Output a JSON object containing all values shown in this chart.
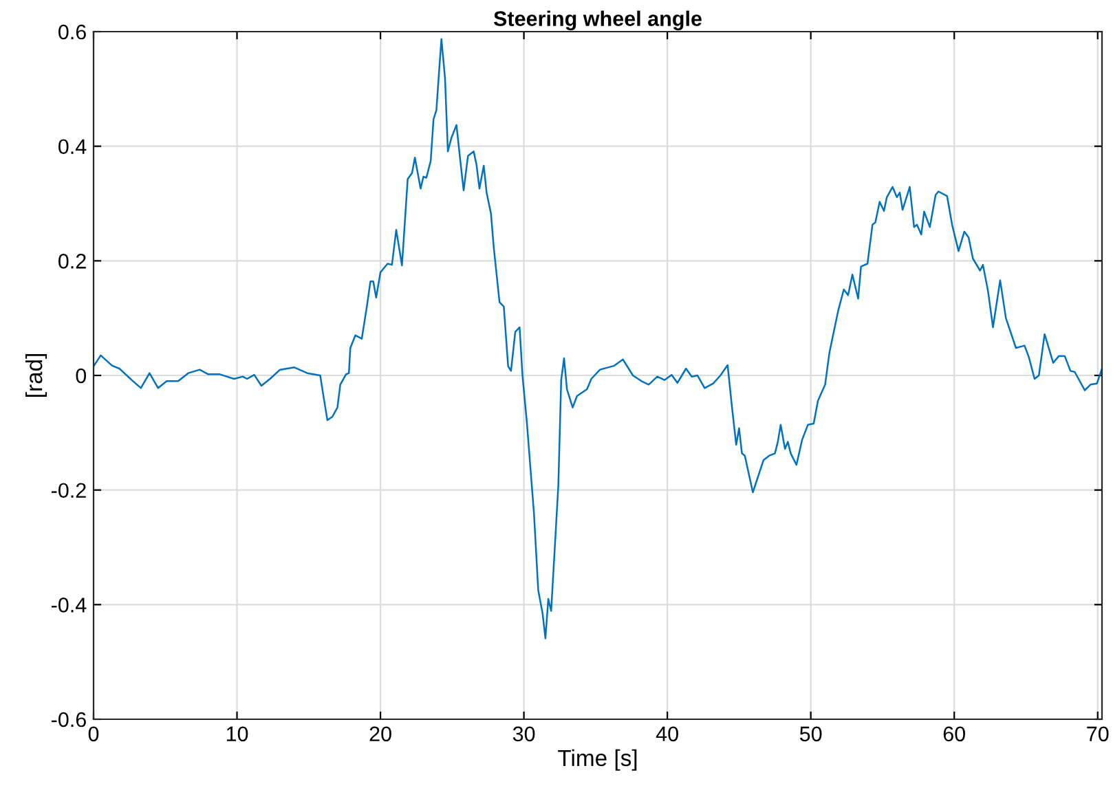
{
  "chart_data": {
    "type": "line",
    "title": "Steering wheel angle",
    "xlabel": "Time [s]",
    "ylabel": "[rad]",
    "xlim": [
      0,
      70.3
    ],
    "ylim": [
      -0.6,
      0.6
    ],
    "xticks": [
      0,
      10,
      20,
      30,
      40,
      50,
      60,
      70
    ],
    "yticks": [
      {
        "value": -0.6,
        "label": "-0.6"
      },
      {
        "value": -0.4,
        "label": "-0.4"
      },
      {
        "value": -0.2,
        "label": "-0.2"
      },
      0,
      {
        "value": 0.2,
        "label": "0.2"
      },
      {
        "value": 0.4,
        "label": "0.4"
      },
      {
        "value": 0.6,
        "label": "0.6"
      }
    ],
    "grid": true,
    "line_style": "solid",
    "marker": "none",
    "series": [
      {
        "color": "#0072bd",
        "x": [
          0,
          0.5,
          1.3,
          1.8,
          2.75,
          3.3,
          3.9,
          4.5,
          5.1,
          5.9,
          6.6,
          7.4,
          8.0,
          8.8,
          9.8,
          10.4,
          10.7,
          11.2,
          11.7,
          12.3,
          13.0,
          14.0,
          14.9,
          15.8,
          16.0,
          16.3,
          16.65,
          17.0,
          17.2,
          17.6,
          17.8,
          17.9,
          18.25,
          18.7,
          19.05,
          19.3,
          19.5,
          19.7,
          20.0,
          20.5,
          20.8,
          21.1,
          21.5,
          21.9,
          22.2,
          22.4,
          22.8,
          23.0,
          23.2,
          23.5,
          23.7,
          23.9,
          24.1,
          24.25,
          24.5,
          24.7,
          24.95,
          25.3,
          25.6,
          25.8,
          26.1,
          26.5,
          26.7,
          26.9,
          27.2,
          27.4,
          27.7,
          27.9,
          28.3,
          28.6,
          28.9,
          29.1,
          29.4,
          29.7,
          29.9,
          30.2,
          30.7,
          31.0,
          31.3,
          31.5,
          31.7,
          31.9,
          32.2,
          32.4,
          32.6,
          32.8,
          33.0,
          33.4,
          33.7,
          34.4,
          34.7,
          35.3,
          36.3,
          36.9,
          37.6,
          38.2,
          38.7,
          39.3,
          39.8,
          40.3,
          40.7,
          41.3,
          41.7,
          42.1,
          42.6,
          43.2,
          43.7,
          44.2,
          44.5,
          44.8,
          45.0,
          45.2,
          45.4,
          45.96,
          46.7,
          47.1,
          47.5,
          47.7,
          47.9,
          48.2,
          48.4,
          48.6,
          49.0,
          49.4,
          49.8,
          50.2,
          50.5,
          51.0,
          51.3,
          51.9,
          52.3,
          52.6,
          52.9,
          53.3,
          53.5,
          53.95,
          54.3,
          54.5,
          54.8,
          55.1,
          55.3,
          55.7,
          56.0,
          56.2,
          56.4,
          56.9,
          57.2,
          57.4,
          57.7,
          57.9,
          58.3,
          58.7,
          58.9,
          59.5,
          59.85,
          60.3,
          60.7,
          61.0,
          61.3,
          61.8,
          62.0,
          62.35,
          62.7,
          63.2,
          63.6,
          64.3,
          64.9,
          65.2,
          65.6,
          65.9,
          66.3,
          66.9,
          67.3,
          67.7,
          68.1,
          68.4,
          69.1,
          69.5,
          69.95,
          70.3
        ],
        "values": [
          0.016,
          0.035,
          0.017,
          0.012,
          -0.01,
          -0.022,
          0.004,
          -0.022,
          -0.01,
          -0.01,
          0.004,
          0.01,
          0.002,
          0.002,
          -0.006,
          -0.002,
          -0.006,
          0.001,
          -0.018,
          -0.006,
          0.01,
          0.014,
          0.004,
          0,
          -0.032,
          -0.078,
          -0.072,
          -0.056,
          -0.016,
          0.002,
          0.004,
          0.048,
          0.07,
          0.064,
          0.12,
          0.164,
          0.164,
          0.136,
          0.18,
          0.195,
          0.193,
          0.254,
          0.192,
          0.343,
          0.353,
          0.38,
          0.326,
          0.347,
          0.345,
          0.374,
          0.447,
          0.463,
          0.535,
          0.587,
          0.519,
          0.391,
          0.415,
          0.437,
          0.367,
          0.323,
          0.383,
          0.391,
          0.367,
          0.326,
          0.366,
          0.319,
          0.283,
          0.223,
          0.128,
          0.12,
          0.016,
          0.008,
          0.076,
          0.084,
          0,
          -0.08,
          -0.24,
          -0.375,
          -0.415,
          -0.459,
          -0.39,
          -0.411,
          -0.28,
          -0.192,
          -0.008,
          0.03,
          -0.024,
          -0.056,
          -0.036,
          -0.024,
          -0.006,
          0.01,
          0.017,
          0.028,
          0,
          -0.01,
          -0.016,
          -0.002,
          -0.008,
          0.001,
          -0.013,
          0.012,
          -0.002,
          0,
          -0.022,
          -0.014,
          0,
          0.018,
          -0.054,
          -0.121,
          -0.092,
          -0.136,
          -0.14,
          -0.204,
          -0.148,
          -0.14,
          -0.136,
          -0.116,
          -0.086,
          -0.128,
          -0.116,
          -0.136,
          -0.156,
          -0.112,
          -0.086,
          -0.084,
          -0.044,
          -0.016,
          0.04,
          0.112,
          0.15,
          0.14,
          0.176,
          0.134,
          0.19,
          0.195,
          0.263,
          0.267,
          0.303,
          0.287,
          0.311,
          0.329,
          0.311,
          0.319,
          0.289,
          0.329,
          0.259,
          0.263,
          0.246,
          0.286,
          0.259,
          0.315,
          0.321,
          0.313,
          0.263,
          0.217,
          0.251,
          0.241,
          0.204,
          0.183,
          0.193,
          0.148,
          0.084,
          0.166,
          0.1,
          0.048,
          0.052,
          0.032,
          -0.006,
          0,
          0.072,
          0.022,
          0.034,
          0.034,
          0.008,
          0.006,
          -0.026,
          -0.016,
          -0.014,
          0.012
        ]
      }
    ]
  }
}
